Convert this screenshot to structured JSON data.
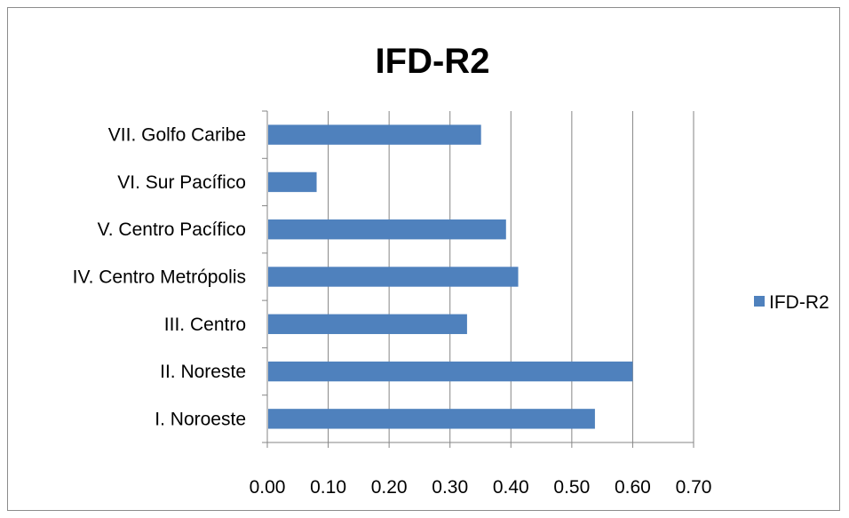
{
  "chart_data": {
    "type": "bar",
    "orientation": "horizontal",
    "title": "IFD-R2",
    "categories": [
      "I.  Noroeste",
      "II.  Noreste",
      "III.  Centro",
      "IV.  Centro Metrópolis",
      "V.  Centro Pacífico",
      "VI.  Sur Pacífico",
      "VII.  Golfo Caribe"
    ],
    "series": [
      {
        "name": "IFD-R2",
        "color": "#4f81bd",
        "values": [
          0.538,
          0.6,
          0.328,
          0.412,
          0.392,
          0.081,
          0.351
        ]
      }
    ],
    "xlim": [
      0,
      0.7
    ],
    "xticks": [
      "0.00",
      "0.10",
      "0.20",
      "0.30",
      "0.40",
      "0.50",
      "0.60",
      "0.70"
    ],
    "grid": true,
    "legend_position": "right"
  }
}
